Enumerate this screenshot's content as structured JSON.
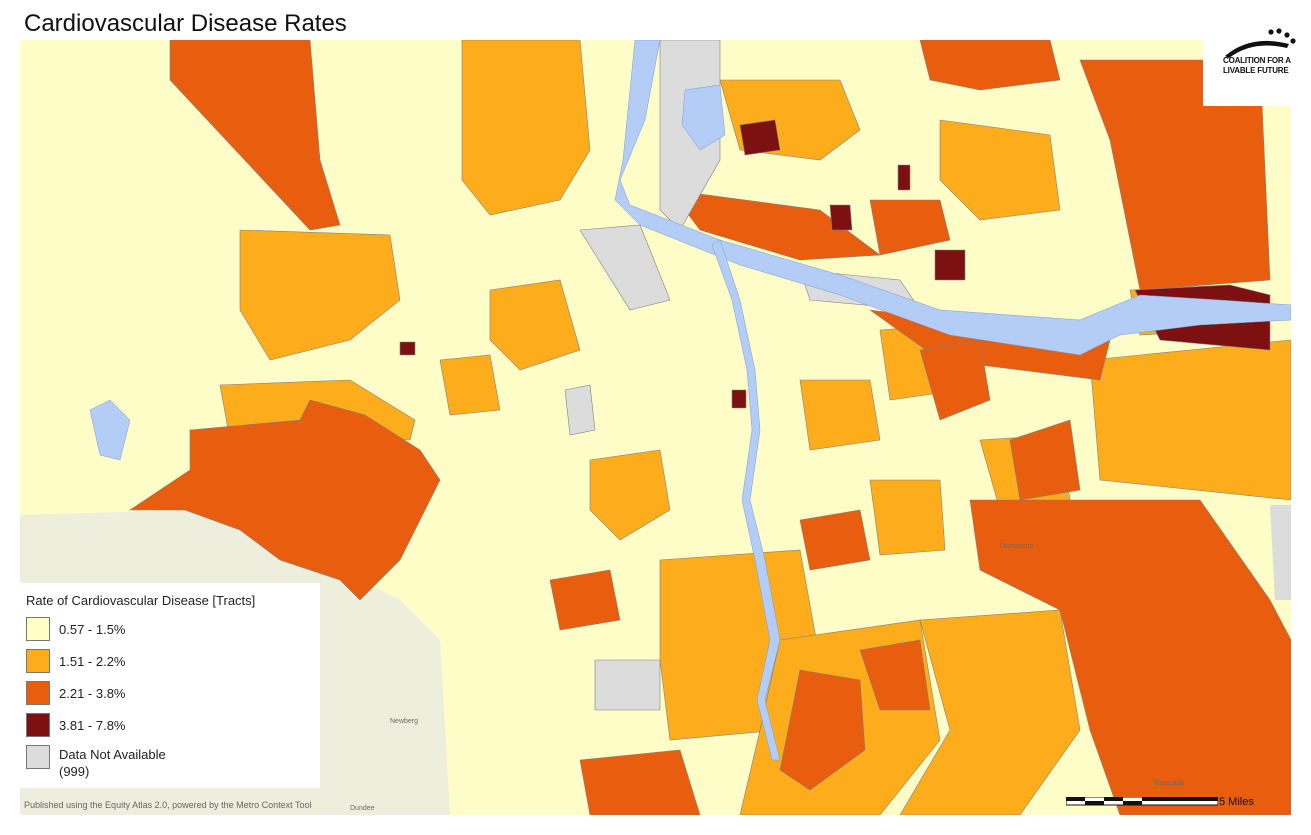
{
  "title": "Cardiovascular Disease Rates",
  "logo": {
    "text": "COALITION FOR A\nLIVABLE FUTURE"
  },
  "legend": {
    "title": "Rate of Cardiovascular Disease [Tracts]",
    "items": [
      {
        "label": "0.57 - 1.5%",
        "color": "#ffffc4"
      },
      {
        "label": "1.51 - 2.2%",
        "color": "#fdad1c"
      },
      {
        "label": "2.21 - 3.8%",
        "color": "#e95d0f"
      },
      {
        "label": "3.81 - 7.8%",
        "color": "#7d1010"
      },
      {
        "label": "Data Not Available\n(999)",
        "color": "#dcdcdc"
      }
    ]
  },
  "footer": "Published using the Equity Atlas 2.0, powered by the Metro Context Tool",
  "scale": {
    "label": "5 Miles"
  },
  "map_labels": {
    "newberg": "Newberg",
    "dundee": "Dundee",
    "damascus": "Damascus",
    "estacada": "Estacada"
  },
  "colors": {
    "water": "#b3cdf6",
    "background": "#fffdc7",
    "outside": "#eeeedd",
    "tract_border": "#808080"
  }
}
